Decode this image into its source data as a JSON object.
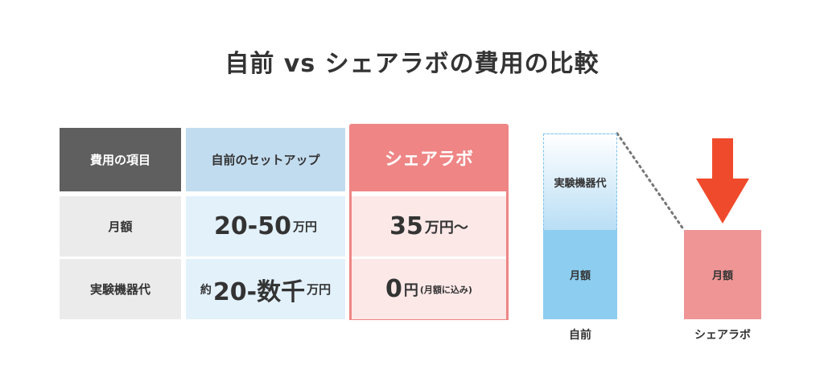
{
  "title": "自前 vs シェアラボの費用の比較",
  "table": {
    "headers": {
      "item": "費用の項目",
      "self": "自前のセットアップ",
      "share": "シェアラボ"
    },
    "rows": [
      {
        "label": "月額",
        "self": {
          "prefix": "",
          "value": "20-50",
          "unit": "万円"
        },
        "share": {
          "value": "35",
          "unit": "万円〜",
          "note": ""
        }
      },
      {
        "label": "実験機器代",
        "self": {
          "prefix": "約",
          "value": "20-数千",
          "unit": "万円"
        },
        "share": {
          "value": "0",
          "unit": "円",
          "note": "(月額に込み)"
        }
      }
    ]
  },
  "comparison": {
    "self_bar": {
      "label": "自前",
      "top_segment": "実験機器代",
      "bottom_segment": "月額"
    },
    "share_bar": {
      "label": "シェアラボ",
      "segment": "月額"
    },
    "colors": {
      "arrow": "#f04a2c",
      "self_top": "#b9def5",
      "self_bottom": "#8ccdf0",
      "share": "#ef9595"
    }
  }
}
